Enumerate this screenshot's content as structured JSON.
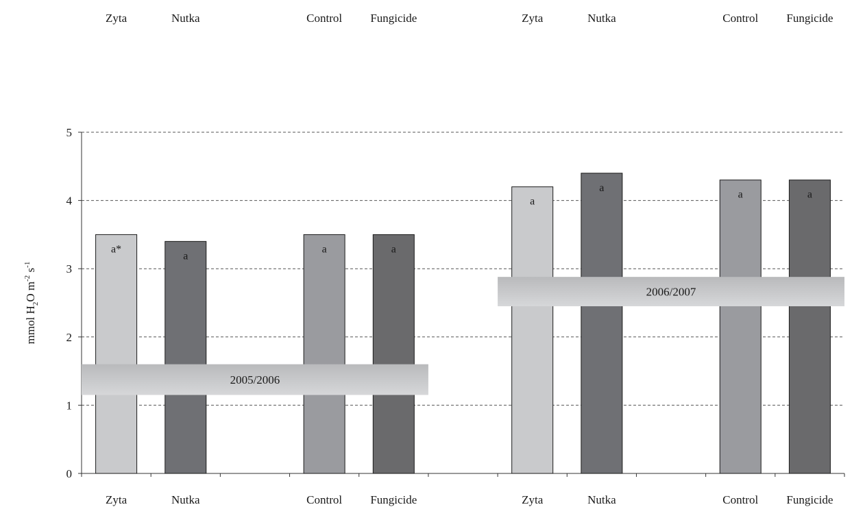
{
  "chart_data": {
    "type": "bar",
    "ylabel": {
      "parts": [
        {
          "t": "mmol H"
        },
        {
          "t": "2",
          "sub": true
        },
        {
          "t": "O m"
        },
        {
          "t": "-2",
          "sup": true
        },
        {
          "t": " s"
        },
        {
          "t": "-1",
          "sup": true
        }
      ]
    },
    "ylim": [
      0,
      5
    ],
    "yticks": [
      0,
      1,
      2,
      3,
      4,
      5
    ],
    "grid": "horizontal-dashed",
    "categories": [
      "Zyta",
      "Nutka",
      "",
      "Control",
      "Fungicide",
      "",
      "Zyta",
      "Nutka",
      "",
      "Control",
      "Fungicide"
    ],
    "top_category_labels": [
      "Zyta",
      "Nutka",
      "Control",
      "Fungicide",
      "Zyta",
      "Nutka",
      "Control",
      "Fungicide"
    ],
    "bars": [
      {
        "category": "Zyta",
        "period": "2005/2006",
        "value": 3.5,
        "label": "a*",
        "color": "#c9cacc"
      },
      {
        "category": "Nutka",
        "period": "2005/2006",
        "value": 3.4,
        "label": "a",
        "color": "#6f7074"
      },
      {
        "category": "Control",
        "period": "2005/2006",
        "value": 3.5,
        "label": "a",
        "color": "#9a9b9f"
      },
      {
        "category": "Fungicide",
        "period": "2005/2006",
        "value": 3.5,
        "label": "a",
        "color": "#6a6a6c"
      },
      {
        "category": "Zyta",
        "period": "2006/2007",
        "value": 4.2,
        "label": "a",
        "color": "#c9cacc"
      },
      {
        "category": "Nutka",
        "period": "2006/2007",
        "value": 4.4,
        "label": "a",
        "color": "#6f7074"
      },
      {
        "category": "Control",
        "period": "2006/2007",
        "value": 4.3,
        "label": "a",
        "color": "#9a9b9f"
      },
      {
        "category": "Fungicide",
        "period": "2006/2007",
        "value": 4.3,
        "label": "a",
        "color": "#6a6a6c"
      }
    ],
    "bar_slots": [
      0,
      1,
      3,
      4,
      6,
      7,
      9,
      10
    ],
    "periods": [
      {
        "label": "2005/2006",
        "slot_span": [
          0,
          5
        ],
        "y_range": [
          1.15,
          1.6
        ]
      },
      {
        "label": "2006/2007",
        "slot_span": [
          6,
          11
        ],
        "y_range": [
          2.45,
          2.88
        ]
      }
    ]
  }
}
